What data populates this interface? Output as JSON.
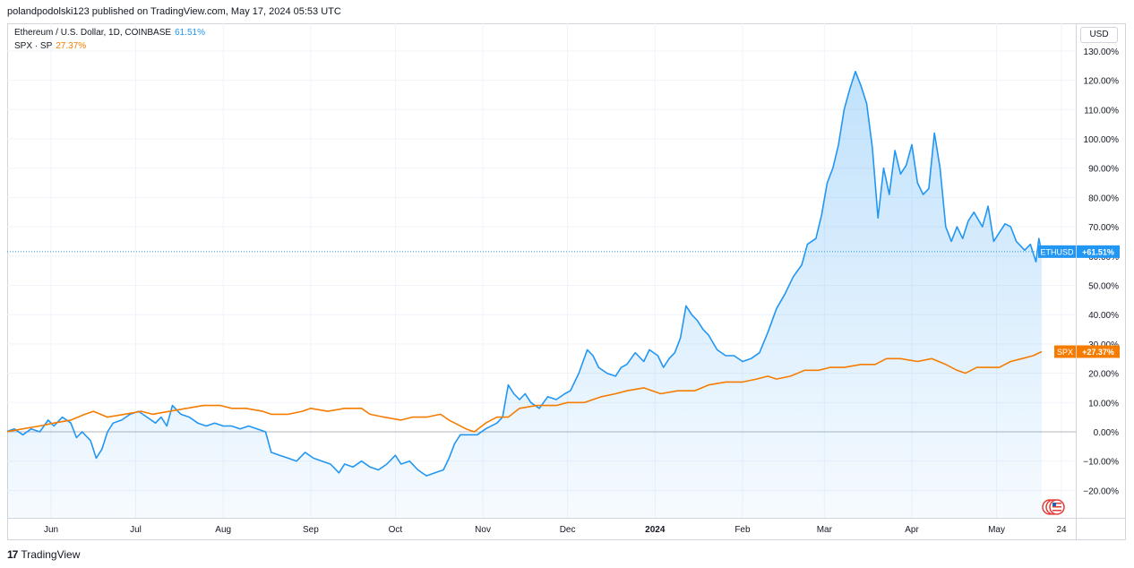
{
  "published": "polandpodolski123 published on TradingView.com, May 17, 2024 05:53 UTC",
  "legend": [
    {
      "label": "Ethereum / U.S. Dollar, 1D, COINBASE",
      "pct": "61.51%",
      "color": "#2196f3"
    },
    {
      "label": "SPX · SP",
      "pct": "27.37%",
      "color": "#f57c00"
    }
  ],
  "currency_button": "USD",
  "footer": {
    "logo_mark": "17",
    "brand": "TradingView"
  },
  "price_tags": {
    "eth_symbol": "ETHUSD",
    "eth_value": "+61.51%",
    "spx_symbol": "SPX",
    "spx_value": "+27.37%"
  },
  "chart_data": {
    "type": "line",
    "yunit": "%",
    "ylim": [
      -25,
      130
    ],
    "y_ticks": [
      -20,
      -10,
      0,
      10,
      20,
      30,
      40,
      50,
      60,
      70,
      80,
      90,
      100,
      110,
      120,
      130
    ],
    "y_tick_labels": [
      "−20.00%",
      "−10.00%",
      "0.00%",
      "10.00%",
      "20.00%",
      "30.00%",
      "40.00%",
      "50.00%",
      "60.00%",
      "70.00%",
      "80.00%",
      "90.00%",
      "100.00%",
      "110.00%",
      "120.00%",
      "130.00%"
    ],
    "x_ticks": [
      {
        "label": "Jun",
        "date": "2023-06-01",
        "bold": false
      },
      {
        "label": "Jul",
        "date": "2023-07-01",
        "bold": false
      },
      {
        "label": "Aug",
        "date": "2023-08-01",
        "bold": false
      },
      {
        "label": "Sep",
        "date": "2023-09-01",
        "bold": false
      },
      {
        "label": "Oct",
        "date": "2023-10-01",
        "bold": false
      },
      {
        "label": "Nov",
        "date": "2023-11-01",
        "bold": false
      },
      {
        "label": "Dec",
        "date": "2023-12-01",
        "bold": false
      },
      {
        "label": "2024",
        "date": "2024-01-01",
        "bold": true
      },
      {
        "label": "Feb",
        "date": "2024-02-01",
        "bold": false
      },
      {
        "label": "Mar",
        "date": "2024-03-01",
        "bold": false
      },
      {
        "label": "Apr",
        "date": "2024-04-01",
        "bold": false
      },
      {
        "label": "May",
        "date": "2024-05-01",
        "bold": false
      },
      {
        "label": "24",
        "date": "2024-05-24",
        "bold": false
      }
    ],
    "grid": true,
    "series": [
      {
        "name": "ETHUSD",
        "color": "#2196f3",
        "area": true,
        "points": [
          [
            "2023-05-16",
            0
          ],
          [
            "2023-05-19",
            1
          ],
          [
            "2023-05-22",
            -1
          ],
          [
            "2023-05-25",
            1
          ],
          [
            "2023-05-28",
            0
          ],
          [
            "2023-05-31",
            4
          ],
          [
            "2023-06-02",
            2
          ],
          [
            "2023-06-05",
            5
          ],
          [
            "2023-06-08",
            3
          ],
          [
            "2023-06-10",
            -2
          ],
          [
            "2023-06-12",
            0
          ],
          [
            "2023-06-15",
            -3
          ],
          [
            "2023-06-17",
            -9
          ],
          [
            "2023-06-19",
            -6
          ],
          [
            "2023-06-21",
            0
          ],
          [
            "2023-06-23",
            3
          ],
          [
            "2023-06-26",
            4
          ],
          [
            "2023-06-29",
            6
          ],
          [
            "2023-07-02",
            7
          ],
          [
            "2023-07-05",
            5
          ],
          [
            "2023-07-08",
            3
          ],
          [
            "2023-07-10",
            5
          ],
          [
            "2023-07-12",
            2
          ],
          [
            "2023-07-14",
            9
          ],
          [
            "2023-07-17",
            6
          ],
          [
            "2023-07-20",
            5
          ],
          [
            "2023-07-23",
            3
          ],
          [
            "2023-07-26",
            2
          ],
          [
            "2023-07-29",
            3
          ],
          [
            "2023-08-01",
            2
          ],
          [
            "2023-08-04",
            2
          ],
          [
            "2023-08-07",
            1
          ],
          [
            "2023-08-10",
            2
          ],
          [
            "2023-08-13",
            1
          ],
          [
            "2023-08-16",
            0
          ],
          [
            "2023-08-18",
            -7
          ],
          [
            "2023-08-21",
            -8
          ],
          [
            "2023-08-24",
            -9
          ],
          [
            "2023-08-27",
            -10
          ],
          [
            "2023-08-30",
            -7
          ],
          [
            "2023-09-02",
            -9
          ],
          [
            "2023-09-05",
            -10
          ],
          [
            "2023-09-08",
            -11
          ],
          [
            "2023-09-11",
            -14
          ],
          [
            "2023-09-13",
            -11
          ],
          [
            "2023-09-16",
            -12
          ],
          [
            "2023-09-19",
            -10
          ],
          [
            "2023-09-22",
            -12
          ],
          [
            "2023-09-25",
            -13
          ],
          [
            "2023-09-28",
            -11
          ],
          [
            "2023-10-01",
            -8
          ],
          [
            "2023-10-03",
            -11
          ],
          [
            "2023-10-06",
            -10
          ],
          [
            "2023-10-09",
            -13
          ],
          [
            "2023-10-12",
            -15
          ],
          [
            "2023-10-15",
            -14
          ],
          [
            "2023-10-18",
            -13
          ],
          [
            "2023-10-20",
            -9
          ],
          [
            "2023-10-22",
            -4
          ],
          [
            "2023-10-24",
            -1
          ],
          [
            "2023-10-27",
            -1
          ],
          [
            "2023-10-30",
            -1
          ],
          [
            "2023-11-02",
            1
          ],
          [
            "2023-11-06",
            3
          ],
          [
            "2023-11-08",
            5
          ],
          [
            "2023-11-10",
            16
          ],
          [
            "2023-11-12",
            13
          ],
          [
            "2023-11-14",
            11
          ],
          [
            "2023-11-16",
            13
          ],
          [
            "2023-11-18",
            10
          ],
          [
            "2023-11-21",
            8
          ],
          [
            "2023-11-24",
            12
          ],
          [
            "2023-11-27",
            11
          ],
          [
            "2023-11-30",
            13
          ],
          [
            "2023-12-02",
            14
          ],
          [
            "2023-12-05",
            20
          ],
          [
            "2023-12-08",
            28
          ],
          [
            "2023-12-10",
            26
          ],
          [
            "2023-12-12",
            22
          ],
          [
            "2023-12-15",
            20
          ],
          [
            "2023-12-18",
            19
          ],
          [
            "2023-12-20",
            22
          ],
          [
            "2023-12-22",
            23
          ],
          [
            "2023-12-25",
            27
          ],
          [
            "2023-12-28",
            24
          ],
          [
            "2023-12-30",
            28
          ],
          [
            "2024-01-02",
            26
          ],
          [
            "2024-01-04",
            22
          ],
          [
            "2024-01-06",
            25
          ],
          [
            "2024-01-08",
            27
          ],
          [
            "2024-01-10",
            32
          ],
          [
            "2024-01-12",
            43
          ],
          [
            "2024-01-14",
            40
          ],
          [
            "2024-01-16",
            38
          ],
          [
            "2024-01-18",
            35
          ],
          [
            "2024-01-20",
            33
          ],
          [
            "2024-01-23",
            28
          ],
          [
            "2024-01-26",
            26
          ],
          [
            "2024-01-29",
            26
          ],
          [
            "2024-02-01",
            24
          ],
          [
            "2024-02-04",
            25
          ],
          [
            "2024-02-07",
            27
          ],
          [
            "2024-02-10",
            34
          ],
          [
            "2024-02-13",
            42
          ],
          [
            "2024-02-16",
            47
          ],
          [
            "2024-02-19",
            53
          ],
          [
            "2024-02-22",
            57
          ],
          [
            "2024-02-24",
            64
          ],
          [
            "2024-02-27",
            66
          ],
          [
            "2024-02-29",
            74
          ],
          [
            "2024-03-02",
            85
          ],
          [
            "2024-03-04",
            90
          ],
          [
            "2024-03-06",
            98
          ],
          [
            "2024-03-08",
            110
          ],
          [
            "2024-03-10",
            117
          ],
          [
            "2024-03-12",
            123
          ],
          [
            "2024-03-14",
            118
          ],
          [
            "2024-03-16",
            112
          ],
          [
            "2024-03-18",
            97
          ],
          [
            "2024-03-20",
            73
          ],
          [
            "2024-03-22",
            90
          ],
          [
            "2024-03-24",
            81
          ],
          [
            "2024-03-26",
            96
          ],
          [
            "2024-03-28",
            88
          ],
          [
            "2024-03-30",
            91
          ],
          [
            "2024-04-01",
            98
          ],
          [
            "2024-04-03",
            85
          ],
          [
            "2024-04-05",
            81
          ],
          [
            "2024-04-07",
            83
          ],
          [
            "2024-04-09",
            102
          ],
          [
            "2024-04-11",
            90
          ],
          [
            "2024-04-13",
            70
          ],
          [
            "2024-04-15",
            65
          ],
          [
            "2024-04-17",
            70
          ],
          [
            "2024-04-19",
            66
          ],
          [
            "2024-04-21",
            72
          ],
          [
            "2024-04-23",
            75
          ],
          [
            "2024-04-26",
            70
          ],
          [
            "2024-04-28",
            77
          ],
          [
            "2024-04-30",
            65
          ],
          [
            "2024-05-02",
            68
          ],
          [
            "2024-05-04",
            71
          ],
          [
            "2024-05-06",
            70
          ],
          [
            "2024-05-08",
            65
          ],
          [
            "2024-05-11",
            62
          ],
          [
            "2024-05-13",
            64
          ],
          [
            "2024-05-15",
            58
          ],
          [
            "2024-05-16",
            66
          ],
          [
            "2024-05-17",
            61.51
          ]
        ]
      },
      {
        "name": "SPX",
        "color": "#f57c00",
        "area": false,
        "points": [
          [
            "2023-05-16",
            0
          ],
          [
            "2023-05-22",
            1
          ],
          [
            "2023-05-28",
            2
          ],
          [
            "2023-06-02",
            3
          ],
          [
            "2023-06-08",
            4
          ],
          [
            "2023-06-13",
            6
          ],
          [
            "2023-06-16",
            7
          ],
          [
            "2023-06-21",
            5
          ],
          [
            "2023-06-27",
            6
          ],
          [
            "2023-07-03",
            7
          ],
          [
            "2023-07-07",
            6
          ],
          [
            "2023-07-13",
            7
          ],
          [
            "2023-07-19",
            8
          ],
          [
            "2023-07-25",
            9
          ],
          [
            "2023-07-31",
            9
          ],
          [
            "2023-08-04",
            8
          ],
          [
            "2023-08-09",
            8
          ],
          [
            "2023-08-15",
            7
          ],
          [
            "2023-08-18",
            6
          ],
          [
            "2023-08-24",
            6
          ],
          [
            "2023-08-29",
            7
          ],
          [
            "2023-09-01",
            8
          ],
          [
            "2023-09-07",
            7
          ],
          [
            "2023-09-13",
            8
          ],
          [
            "2023-09-19",
            8
          ],
          [
            "2023-09-22",
            6
          ],
          [
            "2023-09-27",
            5
          ],
          [
            "2023-10-03",
            4
          ],
          [
            "2023-10-07",
            5
          ],
          [
            "2023-10-12",
            5
          ],
          [
            "2023-10-17",
            6
          ],
          [
            "2023-10-20",
            4
          ],
          [
            "2023-10-26",
            1
          ],
          [
            "2023-10-29",
            0
          ],
          [
            "2023-11-02",
            3
          ],
          [
            "2023-11-06",
            5
          ],
          [
            "2023-11-10",
            5
          ],
          [
            "2023-11-14",
            8
          ],
          [
            "2023-11-20",
            9
          ],
          [
            "2023-11-27",
            9
          ],
          [
            "2023-12-01",
            10
          ],
          [
            "2023-12-07",
            10
          ],
          [
            "2023-12-13",
            12
          ],
          [
            "2023-12-18",
            13
          ],
          [
            "2023-12-22",
            14
          ],
          [
            "2023-12-28",
            15
          ],
          [
            "2024-01-03",
            13
          ],
          [
            "2024-01-09",
            14
          ],
          [
            "2024-01-15",
            14
          ],
          [
            "2024-01-20",
            16
          ],
          [
            "2024-01-26",
            17
          ],
          [
            "2024-02-01",
            17
          ],
          [
            "2024-02-06",
            18
          ],
          [
            "2024-02-10",
            19
          ],
          [
            "2024-02-13",
            18
          ],
          [
            "2024-02-18",
            19
          ],
          [
            "2024-02-23",
            21
          ],
          [
            "2024-02-28",
            21
          ],
          [
            "2024-03-03",
            22
          ],
          [
            "2024-03-08",
            22
          ],
          [
            "2024-03-14",
            23
          ],
          [
            "2024-03-19",
            23
          ],
          [
            "2024-03-23",
            25
          ],
          [
            "2024-03-28",
            25
          ],
          [
            "2024-04-03",
            24
          ],
          [
            "2024-04-08",
            25
          ],
          [
            "2024-04-13",
            23
          ],
          [
            "2024-04-17",
            21
          ],
          [
            "2024-04-20",
            20
          ],
          [
            "2024-04-24",
            22
          ],
          [
            "2024-04-28",
            22
          ],
          [
            "2024-05-02",
            22
          ],
          [
            "2024-05-06",
            24
          ],
          [
            "2024-05-10",
            25
          ],
          [
            "2024-05-14",
            26
          ],
          [
            "2024-05-17",
            27.37
          ]
        ]
      }
    ]
  }
}
